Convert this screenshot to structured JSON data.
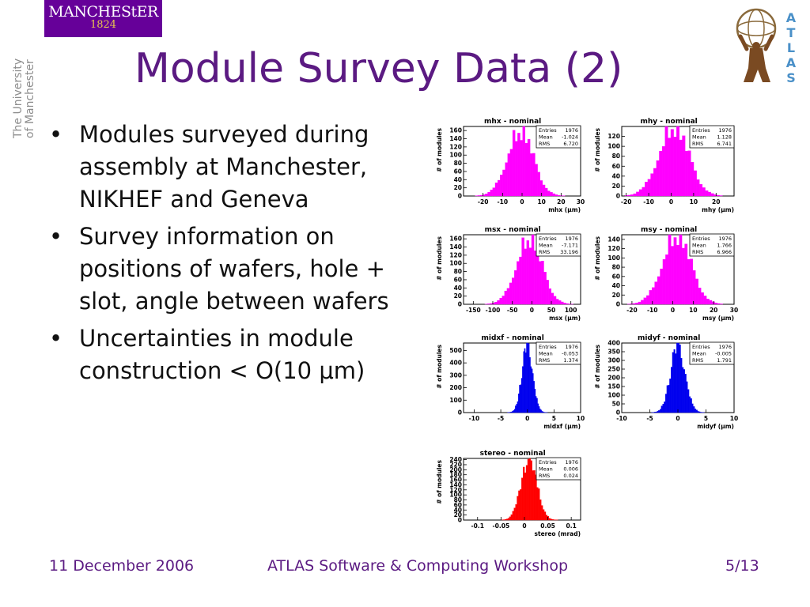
{
  "header": {
    "logo_word": "MANCHEStER",
    "logo_year": "1824",
    "university_vertical": [
      "The University",
      "of Manchester"
    ],
    "title": "Module Survey Data (2)",
    "atlas_letters": [
      "A",
      "T",
      "L",
      "A",
      "S"
    ]
  },
  "bullets": [
    "Modules surveyed during assembly at Manchester, NIKHEF and Geneva",
    "Survey information on positions of wafers, hole + slot, angle between wafers",
    "Uncertainties in module construction < O(10 μm)"
  ],
  "footer": {
    "date": "11 December 2006",
    "event": "ATLAS Software & Computing Workshop",
    "page": "5/13"
  },
  "chart_data": [
    {
      "type": "bar",
      "title": "mhx - nominal",
      "xlabel": "mhx (μm)",
      "ylabel": "# of modules",
      "color": "#ff00ff",
      "xlim": [
        -30,
        30
      ],
      "ylim": [
        0,
        170
      ],
      "xticks": [
        -20,
        -10,
        0,
        10,
        20,
        30
      ],
      "yticks": [
        0,
        20,
        40,
        60,
        80,
        100,
        120,
        140,
        160
      ],
      "stats": {
        "Entries": "1976",
        "Mean": "-1.024",
        "RMS": "6.720"
      },
      "center": -1.0,
      "sigma": 6.7,
      "peak": 158
    },
    {
      "type": "bar",
      "title": "mhy - nominal",
      "xlabel": "mhy (μm)",
      "ylabel": "# of modules",
      "color": "#ff00ff",
      "xlim": [
        -22,
        28
      ],
      "ylim": [
        0,
        140
      ],
      "xticks": [
        -20,
        -10,
        0,
        10,
        20
      ],
      "yticks": [
        0,
        20,
        40,
        60,
        80,
        100,
        120
      ],
      "stats": {
        "Entries": "1976",
        "Mean": "1.128",
        "RMS": "6.741"
      },
      "center": 1.1,
      "sigma": 6.7,
      "peak": 138
    },
    {
      "type": "bar",
      "title": "msx - nominal",
      "xlabel": "msx (μm)",
      "ylabel": "# of modules",
      "color": "#ff00ff",
      "xlim": [
        -175,
        125
      ],
      "ylim": [
        0,
        170
      ],
      "xticks": [
        -150,
        -100,
        -50,
        0,
        50,
        100
      ],
      "yticks": [
        0,
        20,
        40,
        60,
        80,
        100,
        120,
        140,
        160
      ],
      "stats": {
        "Entries": "1976",
        "Mean": "-7.171",
        "RMS": "33.196"
      },
      "center": -7.0,
      "sigma": 33.0,
      "peak": 160
    },
    {
      "type": "bar",
      "title": "msy - nominal",
      "xlabel": "msy (μm)",
      "ylabel": "# of modules",
      "color": "#ff00ff",
      "xlim": [
        -25,
        30
      ],
      "ylim": [
        0,
        150
      ],
      "xticks": [
        -20,
        -10,
        0,
        10,
        20,
        30
      ],
      "yticks": [
        0,
        20,
        40,
        60,
        80,
        100,
        120,
        140
      ],
      "stats": {
        "Entries": "1976",
        "Mean": "1.766",
        "RMS": "6.966"
      },
      "center": 1.8,
      "sigma": 7.0,
      "peak": 148
    },
    {
      "type": "bar",
      "title": "midxf - nominal",
      "xlabel": "midxf (μm)",
      "ylabel": "# of modules",
      "color": "#0000ee",
      "xlim": [
        -12,
        10
      ],
      "ylim": [
        0,
        560
      ],
      "xticks": [
        -10,
        -5,
        0,
        5,
        10
      ],
      "yticks": [
        0,
        100,
        200,
        300,
        400,
        500
      ],
      "stats": {
        "Entries": "1976",
        "Mean": "-0.053",
        "RMS": "1.374"
      },
      "center": 0.0,
      "sigma": 1.0,
      "peak": 540
    },
    {
      "type": "bar",
      "title": "midyf - nominal",
      "xlabel": "midyf (μm)",
      "ylabel": "# of modules",
      "color": "#0000ee",
      "xlim": [
        -10,
        10
      ],
      "ylim": [
        0,
        400
      ],
      "xticks": [
        -10,
        -5,
        0,
        5,
        10
      ],
      "yticks": [
        0,
        50,
        100,
        150,
        200,
        250,
        300,
        350,
        400
      ],
      "stats": {
        "Entries": "1976",
        "Mean": "-0.005",
        "RMS": "1.791"
      },
      "center": 0.0,
      "sigma": 1.3,
      "peak": 380
    },
    {
      "type": "bar",
      "title": "stereo - nominal",
      "xlabel": "stereo (mrad)",
      "ylabel": "# of modules",
      "color": "#ff0000",
      "xlim": [
        -0.13,
        0.12
      ],
      "ylim": [
        0,
        245
      ],
      "xticks": [
        -0.1,
        -0.05,
        0,
        0.05,
        0.1
      ],
      "yticks": [
        0,
        20,
        40,
        60,
        80,
        100,
        120,
        140,
        160,
        180,
        200,
        220,
        240
      ],
      "stats": {
        "Entries": "1976",
        "Mean": "0.006",
        "RMS": "0.024"
      },
      "center": 0.01,
      "sigma": 0.017,
      "peak": 238
    }
  ]
}
